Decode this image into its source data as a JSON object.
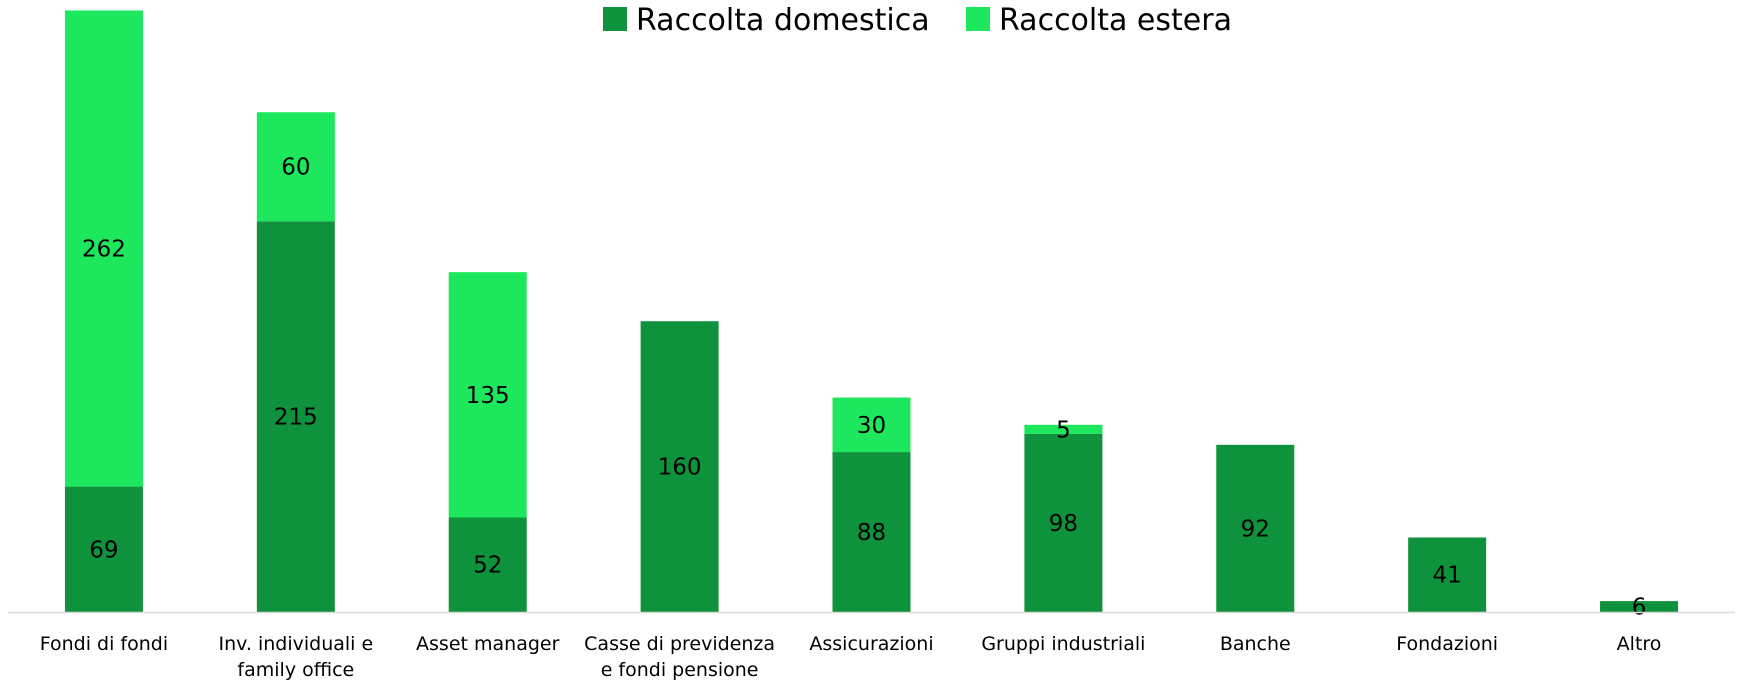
{
  "chart_data": {
    "type": "bar",
    "stacked": true,
    "categories": [
      [
        "Fondi di fondi"
      ],
      [
        "Inv. individuali e",
        "family office"
      ],
      [
        "Asset manager"
      ],
      [
        "Casse di previdenza",
        "e fondi pensione"
      ],
      [
        "Assicurazioni"
      ],
      [
        "Gruppi industriali"
      ],
      [
        "Banche"
      ],
      [
        "Fondazioni"
      ],
      [
        "Altro"
      ]
    ],
    "series": [
      {
        "name": "Raccolta domestica",
        "color": "#0e923b",
        "values": [
          69,
          215,
          52,
          160,
          88,
          98,
          92,
          41,
          6
        ]
      },
      {
        "name": "Raccolta estera",
        "color": "#1de85d",
        "values": [
          262,
          60,
          135,
          0,
          30,
          5,
          0,
          0,
          0
        ]
      }
    ],
    "title": "",
    "xlabel": "",
    "ylabel": "",
    "ylim": [
      0,
      334
    ],
    "grid": false,
    "legend": "top-center",
    "data_labels": true
  }
}
